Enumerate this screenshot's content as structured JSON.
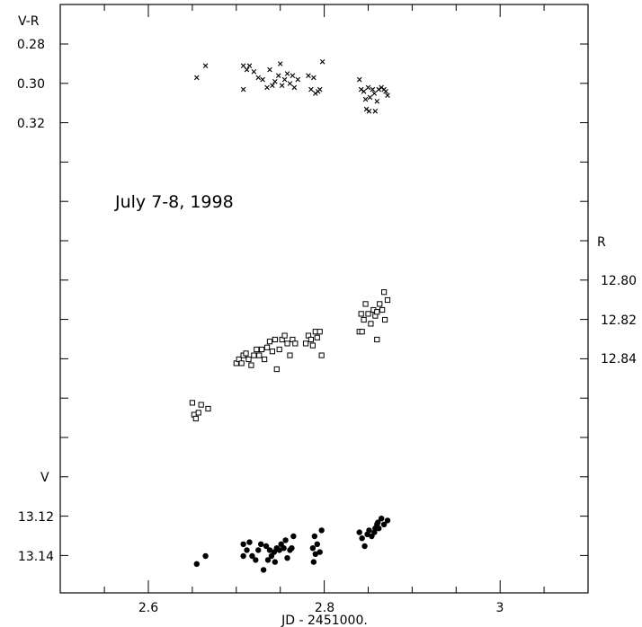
{
  "chart_data": {
    "type": "scatter",
    "annotation": "July 7-8, 1998",
    "xlabel": "JD - 2451000.",
    "xlim": [
      2.5,
      3.1
    ],
    "x_ticks": [
      "2.6",
      "2.8",
      "3"
    ],
    "panels": {
      "vr": {
        "label": "V-R",
        "ticks": [
          "0.28",
          "0.30",
          "0.32"
        ],
        "marker": "cross",
        "points": [
          [
            2.655,
            0.297
          ],
          [
            2.665,
            0.291
          ],
          [
            2.708,
            0.291
          ],
          [
            2.712,
            0.293
          ],
          [
            2.715,
            0.291
          ],
          [
            2.708,
            0.303
          ],
          [
            2.72,
            0.294
          ],
          [
            2.725,
            0.297
          ],
          [
            2.73,
            0.298
          ],
          [
            2.735,
            0.302
          ],
          [
            2.738,
            0.293
          ],
          [
            2.741,
            0.301
          ],
          [
            2.744,
            0.299
          ],
          [
            2.748,
            0.296
          ],
          [
            2.75,
            0.29
          ],
          [
            2.752,
            0.301
          ],
          [
            2.755,
            0.298
          ],
          [
            2.758,
            0.295
          ],
          [
            2.761,
            0.3
          ],
          [
            2.764,
            0.296
          ],
          [
            2.766,
            0.302
          ],
          [
            2.77,
            0.298
          ],
          [
            2.782,
            0.296
          ],
          [
            2.785,
            0.303
          ],
          [
            2.788,
            0.297
          ],
          [
            2.79,
            0.305
          ],
          [
            2.793,
            0.304
          ],
          [
            2.795,
            0.303
          ],
          [
            2.798,
            0.289
          ],
          [
            2.84,
            0.298
          ],
          [
            2.842,
            0.303
          ],
          [
            2.845,
            0.304
          ],
          [
            2.847,
            0.308
          ],
          [
            2.85,
            0.302
          ],
          [
            2.852,
            0.307
          ],
          [
            2.855,
            0.303
          ],
          [
            2.857,
            0.305
          ],
          [
            2.86,
            0.309
          ],
          [
            2.862,
            0.303
          ],
          [
            2.865,
            0.302
          ],
          [
            2.868,
            0.303
          ],
          [
            2.87,
            0.304
          ],
          [
            2.872,
            0.306
          ],
          [
            2.848,
            0.313
          ],
          [
            2.851,
            0.314
          ],
          [
            2.858,
            0.314
          ]
        ]
      },
      "r": {
        "label": "R",
        "ticks": [
          "12.80",
          "12.82",
          "12.84"
        ],
        "marker": "open-square",
        "points": [
          [
            2.65,
            12.862
          ],
          [
            2.652,
            12.868
          ],
          [
            2.654,
            12.87
          ],
          [
            2.657,
            12.867
          ],
          [
            2.66,
            12.863
          ],
          [
            2.668,
            12.865
          ],
          [
            2.7,
            12.842
          ],
          [
            2.703,
            12.84
          ],
          [
            2.706,
            12.842
          ],
          [
            2.708,
            12.838
          ],
          [
            2.711,
            12.837
          ],
          [
            2.714,
            12.84
          ],
          [
            2.717,
            12.843
          ],
          [
            2.72,
            12.838
          ],
          [
            2.723,
            12.835
          ],
          [
            2.726,
            12.838
          ],
          [
            2.729,
            12.835
          ],
          [
            2.732,
            12.84
          ],
          [
            2.735,
            12.834
          ],
          [
            2.738,
            12.831
          ],
          [
            2.741,
            12.836
          ],
          [
            2.744,
            12.83
          ],
          [
            2.746,
            12.845
          ],
          [
            2.749,
            12.835
          ],
          [
            2.752,
            12.83
          ],
          [
            2.755,
            12.828
          ],
          [
            2.758,
            12.832
          ],
          [
            2.761,
            12.838
          ],
          [
            2.764,
            12.83
          ],
          [
            2.767,
            12.832
          ],
          [
            2.779,
            12.832
          ],
          [
            2.782,
            12.828
          ],
          [
            2.785,
            12.83
          ],
          [
            2.787,
            12.833
          ],
          [
            2.79,
            12.826
          ],
          [
            2.792,
            12.829
          ],
          [
            2.795,
            12.826
          ],
          [
            2.797,
            12.838
          ],
          [
            2.84,
            12.826
          ],
          [
            2.842,
            12.817
          ],
          [
            2.845,
            12.82
          ],
          [
            2.847,
            12.812
          ],
          [
            2.85,
            12.817
          ],
          [
            2.853,
            12.822
          ],
          [
            2.856,
            12.815
          ],
          [
            2.858,
            12.818
          ],
          [
            2.86,
            12.816
          ],
          [
            2.863,
            12.812
          ],
          [
            2.866,
            12.815
          ],
          [
            2.869,
            12.82
          ],
          [
            2.872,
            12.81
          ],
          [
            2.843,
            12.826
          ],
          [
            2.86,
            12.83
          ],
          [
            2.868,
            12.806
          ]
        ]
      },
      "v": {
        "label": "V",
        "ticks": [
          "13.12",
          "13.14"
        ],
        "marker": "filled-circle",
        "points": [
          [
            2.655,
            13.144
          ],
          [
            2.665,
            13.14
          ],
          [
            2.708,
            13.134
          ],
          [
            2.712,
            13.137
          ],
          [
            2.715,
            13.133
          ],
          [
            2.718,
            13.14
          ],
          [
            2.722,
            13.142
          ],
          [
            2.725,
            13.137
          ],
          [
            2.728,
            13.134
          ],
          [
            2.731,
            13.147
          ],
          [
            2.734,
            13.135
          ],
          [
            2.736,
            13.142
          ],
          [
            2.738,
            13.137
          ],
          [
            2.74,
            13.14
          ],
          [
            2.743,
            13.138
          ],
          [
            2.746,
            13.136
          ],
          [
            2.749,
            13.137
          ],
          [
            2.751,
            13.134
          ],
          [
            2.754,
            13.136
          ],
          [
            2.756,
            13.132
          ],
          [
            2.758,
            13.141
          ],
          [
            2.761,
            13.137
          ],
          [
            2.763,
            13.136
          ],
          [
            2.765,
            13.13
          ],
          [
            2.708,
            13.14
          ],
          [
            2.744,
            13.143
          ],
          [
            2.787,
            13.136
          ],
          [
            2.79,
            13.139
          ],
          [
            2.792,
            13.134
          ],
          [
            2.795,
            13.138
          ],
          [
            2.797,
            13.127
          ],
          [
            2.789,
            13.13
          ],
          [
            2.788,
            13.143
          ],
          [
            2.84,
            13.128
          ],
          [
            2.843,
            13.131
          ],
          [
            2.846,
            13.135
          ],
          [
            2.849,
            13.129
          ],
          [
            2.851,
            13.127
          ],
          [
            2.854,
            13.13
          ],
          [
            2.857,
            13.128
          ],
          [
            2.86,
            13.124
          ],
          [
            2.862,
            13.126
          ],
          [
            2.865,
            13.121
          ],
          [
            2.868,
            13.124
          ],
          [
            2.872,
            13.122
          ],
          [
            2.858,
            13.126
          ],
          [
            2.861,
            13.123
          ]
        ]
      }
    }
  }
}
